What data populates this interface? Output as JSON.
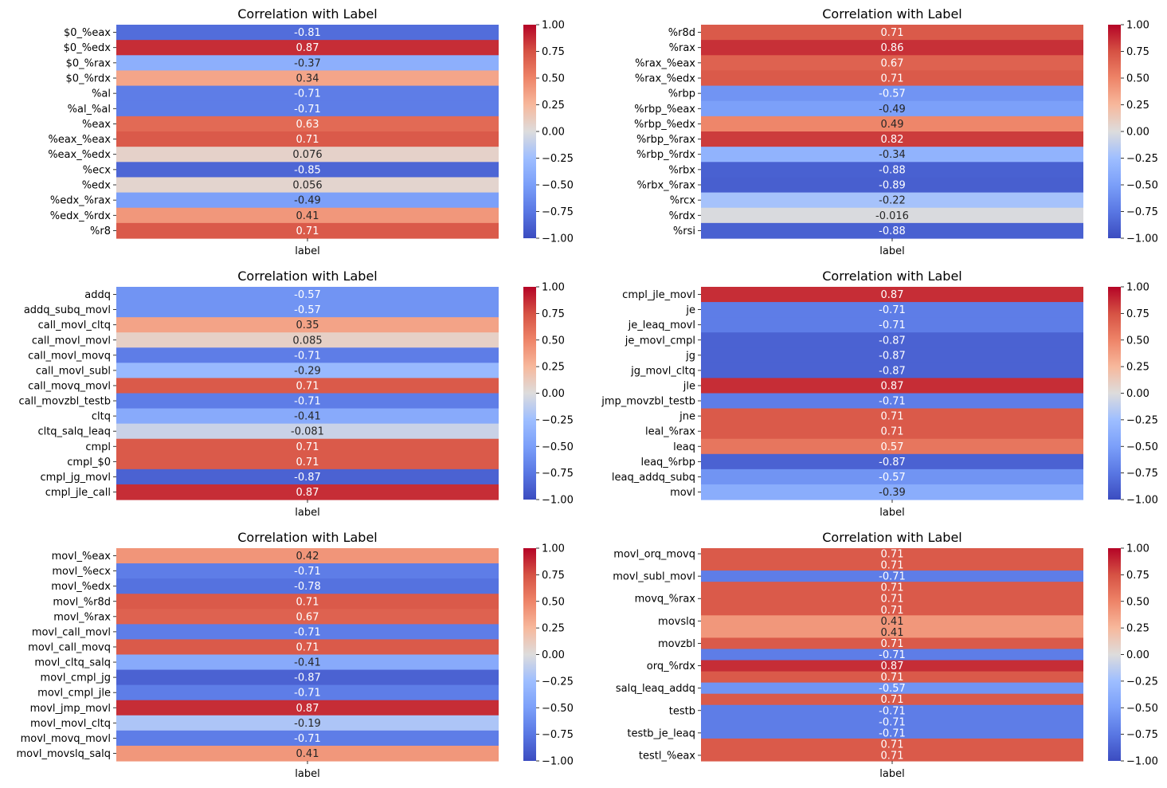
{
  "colorbar_ticks": [
    "1.00",
    "0.75",
    "0.50",
    "0.25",
    "0.00",
    "−0.25",
    "−0.50",
    "−0.75",
    "−1.00"
  ],
  "chart_data": [
    {
      "type": "heatmap",
      "title": "Correlation with Label",
      "xlabel": "label",
      "vmin": -1,
      "vmax": 1,
      "colormap": "coolwarm",
      "rows": [
        {
          "name": "$0_%eax",
          "value": -0.81,
          "label": "-0.81"
        },
        {
          "name": "$0_%edx",
          "value": 0.87,
          "label": "0.87"
        },
        {
          "name": "$0_%rax",
          "value": -0.37,
          "label": "-0.37"
        },
        {
          "name": "$0_%rdx",
          "value": 0.34,
          "label": "0.34"
        },
        {
          "name": "%al",
          "value": -0.71,
          "label": "-0.71"
        },
        {
          "name": "%al_%al",
          "value": -0.71,
          "label": "-0.71"
        },
        {
          "name": "%eax",
          "value": 0.63,
          "label": "0.63"
        },
        {
          "name": "%eax_%eax",
          "value": 0.71,
          "label": "0.71"
        },
        {
          "name": "%eax_%edx",
          "value": 0.076,
          "label": "0.076"
        },
        {
          "name": "%ecx",
          "value": -0.85,
          "label": "-0.85"
        },
        {
          "name": "%edx",
          "value": 0.056,
          "label": "0.056"
        },
        {
          "name": "%edx_%rax",
          "value": -0.49,
          "label": "-0.49"
        },
        {
          "name": "%edx_%rdx",
          "value": 0.41,
          "label": "0.41"
        },
        {
          "name": "%r8",
          "value": 0.71,
          "label": "0.71"
        }
      ]
    },
    {
      "type": "heatmap",
      "title": "Correlation with Label",
      "xlabel": "label",
      "vmin": -1,
      "vmax": 1,
      "colormap": "coolwarm",
      "rows": [
        {
          "name": "%r8d",
          "value": 0.71,
          "label": "0.71"
        },
        {
          "name": "%rax",
          "value": 0.86,
          "label": "0.86"
        },
        {
          "name": "%rax_%eax",
          "value": 0.67,
          "label": "0.67"
        },
        {
          "name": "%rax_%edx",
          "value": 0.71,
          "label": "0.71"
        },
        {
          "name": "%rbp",
          "value": -0.57,
          "label": "-0.57"
        },
        {
          "name": "%rbp_%eax",
          "value": -0.49,
          "label": "-0.49"
        },
        {
          "name": "%rbp_%edx",
          "value": 0.49,
          "label": "0.49"
        },
        {
          "name": "%rbp_%rax",
          "value": 0.82,
          "label": "0.82"
        },
        {
          "name": "%rbp_%rdx",
          "value": -0.34,
          "label": "-0.34"
        },
        {
          "name": "%rbx",
          "value": -0.88,
          "label": "-0.88"
        },
        {
          "name": "%rbx_%rax",
          "value": -0.89,
          "label": "-0.89"
        },
        {
          "name": "%rcx",
          "value": -0.22,
          "label": "-0.22"
        },
        {
          "name": "%rdx",
          "value": -0.016,
          "label": "-0.016"
        },
        {
          "name": "%rsi",
          "value": -0.88,
          "label": "-0.88"
        }
      ]
    },
    {
      "type": "heatmap",
      "title": "Correlation with Label",
      "xlabel": "label",
      "vmin": -1,
      "vmax": 1,
      "colormap": "coolwarm",
      "rows": [
        {
          "name": "addq",
          "value": -0.57,
          "label": "-0.57"
        },
        {
          "name": "addq_subq_movl",
          "value": -0.57,
          "label": "-0.57"
        },
        {
          "name": "call_movl_cltq",
          "value": 0.35,
          "label": "0.35"
        },
        {
          "name": "call_movl_movl",
          "value": 0.085,
          "label": "0.085"
        },
        {
          "name": "call_movl_movq",
          "value": -0.71,
          "label": "-0.71"
        },
        {
          "name": "call_movl_subl",
          "value": -0.29,
          "label": "-0.29"
        },
        {
          "name": "call_movq_movl",
          "value": 0.71,
          "label": "0.71"
        },
        {
          "name": "call_movzbl_testb",
          "value": -0.71,
          "label": "-0.71"
        },
        {
          "name": "cltq",
          "value": -0.41,
          "label": "-0.41"
        },
        {
          "name": "cltq_salq_leaq",
          "value": -0.081,
          "label": "-0.081"
        },
        {
          "name": "cmpl",
          "value": 0.71,
          "label": "0.71"
        },
        {
          "name": "cmpl_$0",
          "value": 0.71,
          "label": "0.71"
        },
        {
          "name": "cmpl_jg_movl",
          "value": -0.87,
          "label": "-0.87"
        },
        {
          "name": "cmpl_jle_call",
          "value": 0.87,
          "label": "0.87"
        }
      ]
    },
    {
      "type": "heatmap",
      "title": "Correlation with Label",
      "xlabel": "label",
      "vmin": -1,
      "vmax": 1,
      "colormap": "coolwarm",
      "rows": [
        {
          "name": "cmpl_jle_movl",
          "value": 0.87,
          "label": "0.87"
        },
        {
          "name": "je",
          "value": -0.71,
          "label": "-0.71"
        },
        {
          "name": "je_leaq_movl",
          "value": -0.71,
          "label": "-0.71"
        },
        {
          "name": "je_movl_cmpl",
          "value": -0.87,
          "label": "-0.87"
        },
        {
          "name": "jg",
          "value": -0.87,
          "label": "-0.87"
        },
        {
          "name": "jg_movl_cltq",
          "value": -0.87,
          "label": "-0.87"
        },
        {
          "name": "jle",
          "value": 0.87,
          "label": "0.87"
        },
        {
          "name": "jmp_movzbl_testb",
          "value": -0.71,
          "label": "-0.71"
        },
        {
          "name": "jne",
          "value": 0.71,
          "label": "0.71"
        },
        {
          "name": "leal_%rax",
          "value": 0.71,
          "label": "0.71"
        },
        {
          "name": "leaq",
          "value": 0.57,
          "label": "0.57"
        },
        {
          "name": "leaq_%rbp",
          "value": -0.87,
          "label": "-0.87"
        },
        {
          "name": "leaq_addq_subq",
          "value": -0.57,
          "label": "-0.57"
        },
        {
          "name": "movl",
          "value": -0.39,
          "label": "-0.39"
        }
      ]
    },
    {
      "type": "heatmap",
      "title": "Correlation with Label",
      "xlabel": "label",
      "vmin": -1,
      "vmax": 1,
      "colormap": "coolwarm",
      "rows": [
        {
          "name": "movl_%eax",
          "value": 0.42,
          "label": "0.42"
        },
        {
          "name": "movl_%ecx",
          "value": -0.71,
          "label": "-0.71"
        },
        {
          "name": "movl_%edx",
          "value": -0.78,
          "label": "-0.78"
        },
        {
          "name": "movl_%r8d",
          "value": 0.71,
          "label": "0.71"
        },
        {
          "name": "movl_%rax",
          "value": 0.67,
          "label": "0.67"
        },
        {
          "name": "movl_call_movl",
          "value": -0.71,
          "label": "-0.71"
        },
        {
          "name": "movl_call_movq",
          "value": 0.71,
          "label": "0.71"
        },
        {
          "name": "movl_cltq_salq",
          "value": -0.41,
          "label": "-0.41"
        },
        {
          "name": "movl_cmpl_jg",
          "value": -0.87,
          "label": "-0.87"
        },
        {
          "name": "movl_cmpl_jle",
          "value": -0.71,
          "label": "-0.71"
        },
        {
          "name": "movl_jmp_movl",
          "value": 0.87,
          "label": "0.87"
        },
        {
          "name": "movl_movl_cltq",
          "value": -0.19,
          "label": "-0.19"
        },
        {
          "name": "movl_movq_movl",
          "value": -0.71,
          "label": "-0.71"
        },
        {
          "name": "movl_movslq_salq",
          "value": 0.41,
          "label": "0.41"
        }
      ]
    },
    {
      "type": "heatmap",
      "title": "Correlation with Label",
      "xlabel": "label",
      "vmin": -1,
      "vmax": 1,
      "colormap": "coolwarm",
      "tick_every": 2,
      "rows": [
        {
          "name": "movl_orq_movq",
          "value": 0.71,
          "label": "0.71"
        },
        {
          "name": "",
          "value": 0.71,
          "label": "0.71"
        },
        {
          "name": "movl_subl_movl",
          "value": -0.71,
          "label": "-0.71"
        },
        {
          "name": "",
          "value": 0.71,
          "label": "0.71"
        },
        {
          "name": "movq_%rax",
          "value": 0.71,
          "label": "0.71"
        },
        {
          "name": "",
          "value": 0.71,
          "label": "0.71"
        },
        {
          "name": "movslq",
          "value": 0.41,
          "label": "0.41"
        },
        {
          "name": "",
          "value": 0.41,
          "label": "0.41"
        },
        {
          "name": "movzbl",
          "value": 0.71,
          "label": "0.71"
        },
        {
          "name": "",
          "value": -0.71,
          "label": "-0.71"
        },
        {
          "name": "orq_%rdx",
          "value": 0.87,
          "label": "0.87"
        },
        {
          "name": "",
          "value": 0.71,
          "label": "0.71"
        },
        {
          "name": "salq_leaq_addq",
          "value": -0.57,
          "label": "-0.57"
        },
        {
          "name": "",
          "value": 0.71,
          "label": "0.71"
        },
        {
          "name": "testb",
          "value": -0.71,
          "label": "-0.71"
        },
        {
          "name": "",
          "value": -0.71,
          "label": "-0.71"
        },
        {
          "name": "testb_je_leaq",
          "value": -0.71,
          "label": "-0.71"
        },
        {
          "name": "",
          "value": 0.71,
          "label": "0.71"
        },
        {
          "name": "testl_%eax",
          "value": 0.71,
          "label": "0.71"
        }
      ]
    }
  ]
}
